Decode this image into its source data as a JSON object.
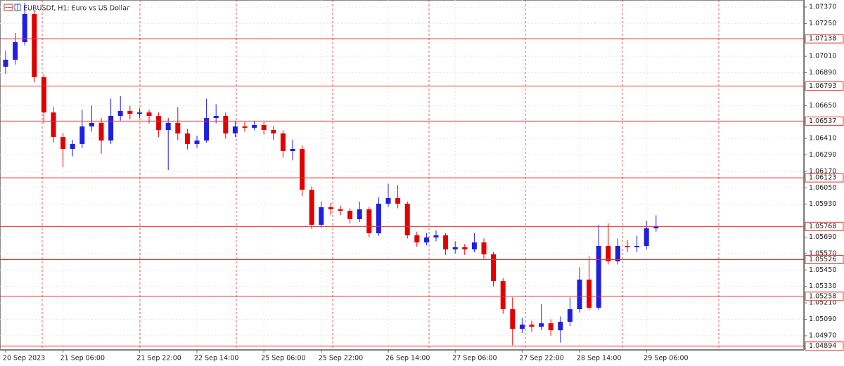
{
  "chart_data": {
    "type": "candlestick",
    "title": "EURUSDf, H1:  Euro vs US Dollar",
    "up_color": "#1f1fe0",
    "down_color": "#e00000",
    "level_color": "#e83030",
    "ylim": [
      1.04867,
      1.07421
    ],
    "yticks": [
      {
        "value": 1.0737,
        "label": "1.07370"
      },
      {
        "value": 1.0725,
        "label": "1.07250"
      },
      {
        "value": 1.0701,
        "label": "1.07010"
      },
      {
        "value": 1.0689,
        "label": "1.06890"
      },
      {
        "value": 1.0665,
        "label": "1.06650"
      },
      {
        "value": 1.0641,
        "label": "1.06410"
      },
      {
        "value": 1.0629,
        "label": "1.06290"
      },
      {
        "value": 1.0617,
        "label": "1.06170"
      },
      {
        "value": 1.0605,
        "label": "1.06050"
      },
      {
        "value": 1.0593,
        "label": "1.05930"
      },
      {
        "value": 1.0569,
        "label": "1.05690"
      },
      {
        "value": 1.0557,
        "label": "1.05570"
      },
      {
        "value": 1.0545,
        "label": "1.05450"
      },
      {
        "value": 1.0533,
        "label": "1.05330"
      },
      {
        "value": 1.0521,
        "label": "1.05210"
      },
      {
        "value": 1.0509,
        "label": "1.05090"
      },
      {
        "value": 1.0497,
        "label": "1.04970"
      }
    ],
    "levels": [
      1.07138,
      1.06793,
      1.06537,
      1.06123,
      1.05768,
      1.05526,
      1.05258,
      1.04894
    ],
    "grid": true,
    "categories": [
      "20 Sep 2023",
      null,
      null,
      null,
      null,
      null,
      "21 Sep 06:00",
      null,
      null,
      null,
      null,
      null,
      null,
      null,
      "21 Sep 22:00",
      null,
      null,
      null,
      null,
      null,
      "22 Sep 14:00",
      null,
      null,
      null,
      null,
      null,
      null,
      "25 Sep 06:00",
      null,
      null,
      null,
      null,
      null,
      "25 Sep 22:00",
      null,
      null,
      null,
      null,
      null,
      null,
      "26 Sep 14:00",
      null,
      null,
      null,
      null,
      null,
      null,
      "27 Sep 06:00",
      null,
      null,
      null,
      null,
      null,
      null,
      "27 Sep 22:00",
      null,
      null,
      null,
      null,
      null,
      "28 Sep 14:00",
      null,
      null,
      null,
      null,
      null,
      null,
      "29 Sep 06:00",
      null
    ],
    "open": [
      1.06934,
      1.06985,
      1.07113,
      1.07319,
      1.06857,
      1.066,
      1.06421,
      1.06334,
      1.0637,
      1.06498,
      1.06524,
      1.06395,
      1.06575,
      1.06611,
      1.0659,
      1.066,
      1.06575,
      1.06472,
      1.06524,
      1.06447,
      1.0637,
      1.06395,
      1.06559,
      1.06575,
      1.06447,
      1.06498,
      1.06488,
      1.06508,
      1.06472,
      1.06447,
      1.06318,
      1.06334,
      1.06036,
      1.0578,
      1.05908,
      1.05893,
      1.05882,
      1.05821,
      1.05893,
      1.05718,
      1.05934,
      1.05975,
      1.05934,
      1.05703,
      1.05651,
      1.05687,
      1.05703,
      1.056,
      1.05616,
      1.056,
      1.05651,
      1.05564,
      1.05369,
      1.05164,
      1.0502,
      1.05051,
      1.05036,
      1.05061,
      1.0501,
      1.05072,
      1.05164,
      1.0538,
      1.05174,
      1.05626,
      1.05513,
      1.05626,
      1.05616,
      1.05626,
      1.05754
    ],
    "high": [
      1.0705,
      1.0718,
      1.074,
      1.0735,
      1.0688,
      1.0664,
      1.0645,
      1.064,
      1.0662,
      1.0665,
      1.0656,
      1.067,
      1.0672,
      1.0665,
      1.0663,
      1.0662,
      1.066,
      1.0656,
      1.0664,
      1.0648,
      1.0643,
      1.067,
      1.0666,
      1.066,
      1.0654,
      1.0653,
      1.0654,
      1.0653,
      1.065,
      1.0647,
      1.064,
      1.0636,
      1.0606,
      1.0595,
      1.0594,
      1.0592,
      1.059,
      1.0595,
      1.0591,
      1.0598,
      1.0608,
      1.0607,
      1.0595,
      1.0573,
      1.0572,
      1.0574,
      1.0572,
      1.0566,
      1.0564,
      1.0572,
      1.0568,
      1.0558,
      1.0539,
      1.0525,
      1.051,
      1.0508,
      1.052,
      1.0509,
      1.0511,
      1.0525,
      1.0547,
      1.0555,
      1.0578,
      1.0579,
      1.0568,
      1.0567,
      1.057,
      1.0581,
      1.0585
    ],
    "low": [
      1.0688,
      1.0695,
      1.0709,
      1.0682,
      1.0652,
      1.0638,
      1.062,
      1.0628,
      1.0634,
      1.0646,
      1.063,
      1.0637,
      1.0654,
      1.0655,
      1.0656,
      1.0652,
      1.0642,
      1.0618,
      1.064,
      1.0633,
      1.0634,
      1.0638,
      1.0652,
      1.0641,
      1.0642,
      1.0646,
      1.0647,
      1.0644,
      1.064,
      1.0627,
      1.0625,
      1.0599,
      1.0575,
      1.0576,
      1.0585,
      1.0585,
      1.0579,
      1.058,
      1.0569,
      1.057,
      1.0591,
      1.059,
      1.0568,
      1.0562,
      1.0563,
      1.0566,
      1.0556,
      1.0557,
      1.0556,
      1.0558,
      1.0553,
      1.0533,
      1.0513,
      1.049,
      1.0499,
      1.05,
      1.0501,
      1.0497,
      1.0492,
      1.0504,
      1.0514,
      1.0516,
      1.0516,
      1.0549,
      1.0549,
      1.0558,
      1.0558,
      1.056,
      1.0573
    ],
    "close": [
      1.06985,
      1.07113,
      1.07319,
      1.06857,
      1.066,
      1.06421,
      1.06334,
      1.0637,
      1.06498,
      1.06524,
      1.06395,
      1.06575,
      1.06611,
      1.0659,
      1.066,
      1.06575,
      1.06472,
      1.06524,
      1.06447,
      1.0637,
      1.06395,
      1.06559,
      1.06575,
      1.06447,
      1.06498,
      1.06488,
      1.06508,
      1.06472,
      1.06447,
      1.06318,
      1.06334,
      1.06036,
      1.0578,
      1.05908,
      1.05893,
      1.05882,
      1.05821,
      1.05893,
      1.05718,
      1.05934,
      1.05975,
      1.05934,
      1.05703,
      1.05651,
      1.05687,
      1.05703,
      1.056,
      1.05616,
      1.056,
      1.05651,
      1.05564,
      1.05369,
      1.05164,
      1.0502,
      1.05051,
      1.05036,
      1.05061,
      1.0501,
      1.05072,
      1.05164,
      1.0538,
      1.05174,
      1.05626,
      1.05513,
      1.05626,
      1.05616,
      1.05626,
      1.05754,
      1.05769
    ]
  }
}
